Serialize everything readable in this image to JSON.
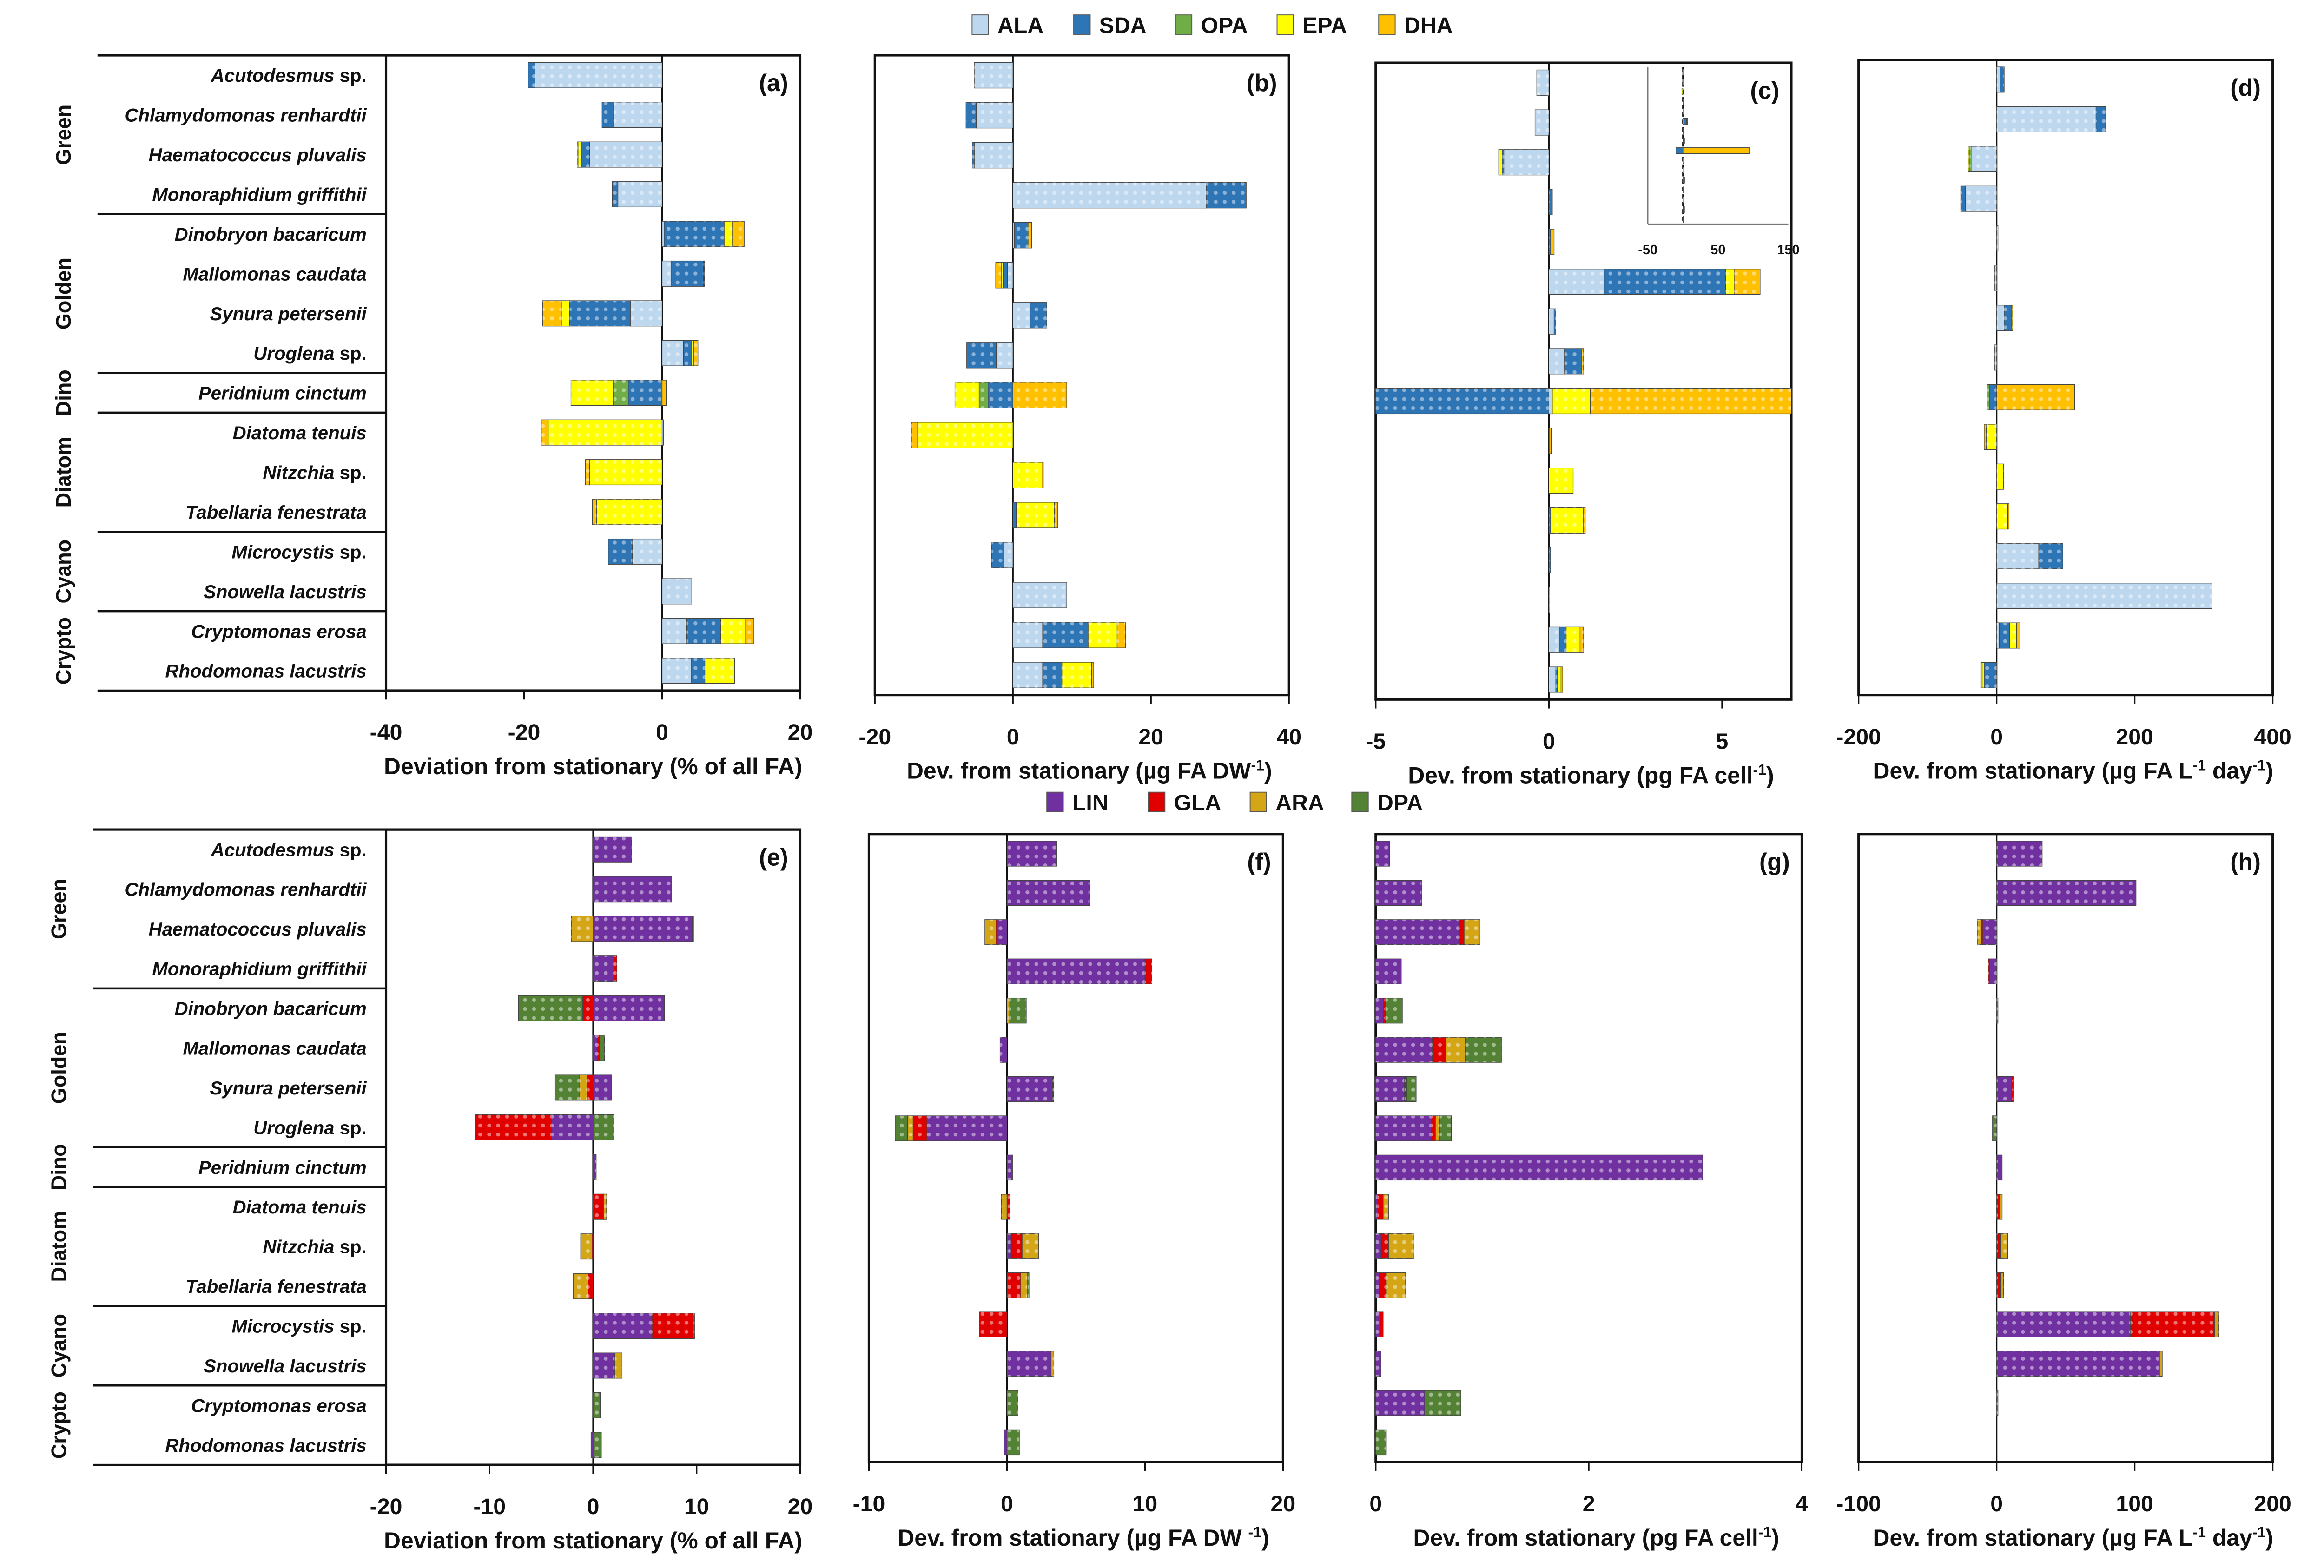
{
  "species": [
    "Acutodesmus sp.",
    "Chlamydomonas renhardtii",
    "Haematococcus pluvalis",
    "Monoraphidium griffithii",
    "Dinobryon bacaricum",
    "Mallomonas caudata",
    "Synura petersenii",
    "Uroglena sp.",
    "Peridnium cinctum",
    "Diatoma tenuis",
    "Nitzchia sp.",
    "Tabellaria fenestrata",
    "Microcystis sp.",
    "Snowella lacustris",
    "Cryptomonas erosa",
    "Rhodomonas lacustris"
  ],
  "groups": [
    {
      "name": "Green",
      "first": 0,
      "last": 3
    },
    {
      "name": "Golden",
      "first": 4,
      "last": 7
    },
    {
      "name": "Dino",
      "first": 8,
      "last": 8
    },
    {
      "name": "Diatom",
      "first": 9,
      "last": 11
    },
    {
      "name": "Cyano",
      "first": 12,
      "last": 13
    },
    {
      "name": "Crypto",
      "first": 14,
      "last": 15
    }
  ],
  "legends": {
    "top": [
      {
        "name": "ALA",
        "color": "#bdd7ee"
      },
      {
        "name": "SDA",
        "color": "#2e75b6"
      },
      {
        "name": "OPA",
        "color": "#70ad47"
      },
      {
        "name": "EPA",
        "color": "#ffff00"
      },
      {
        "name": "DHA",
        "color": "#ffc000"
      }
    ],
    "bottom": [
      {
        "name": "LIN",
        "color": "#7030a0"
      },
      {
        "name": "GLA",
        "color": "#e00000"
      },
      {
        "name": "ARA",
        "color": "#d4a514"
      },
      {
        "name": "DPA",
        "color": "#548235"
      }
    ]
  },
  "chart_data": [
    {
      "type": "bar",
      "panel": "(a)",
      "legend": "top",
      "xlim": [
        -40,
        20
      ],
      "ticks": [
        -40,
        -20,
        0,
        20
      ],
      "xlabel": [
        {
          "t": "Deviation from stationary (% of all FA)"
        }
      ],
      "series": [
        {
          "name": "ALA",
          "values": [
            -18.4,
            -7.1,
            -10.5,
            -6.4,
            0.3,
            1.3,
            -4.6,
            3.1,
            0,
            0.2,
            0,
            0,
            -4.3,
            4.3,
            3.5,
            4.2
          ]
        },
        {
          "name": "SDA",
          "values": [
            -1.0,
            -1.6,
            -1.2,
            -0.8,
            8.7,
            4.7,
            -8.8,
            1.2,
            -4.9,
            0,
            0,
            0,
            -3.5,
            0,
            5.0,
            2.0
          ]
        },
        {
          "name": "OPA",
          "values": [
            0,
            0,
            0,
            0,
            0,
            0.1,
            0,
            0,
            -2.2,
            0,
            0,
            0,
            0,
            0,
            0,
            0
          ]
        },
        {
          "name": "EPA",
          "values": [
            0,
            0,
            -0.5,
            0,
            1.2,
            0,
            -1.1,
            0.3,
            -6.1,
            -16.5,
            -10.5,
            -9.5,
            0,
            0,
            3.5,
            4.3
          ]
        },
        {
          "name": "DHA",
          "values": [
            0,
            0,
            -0.1,
            0,
            1.7,
            0,
            -2.8,
            0.6,
            0.6,
            -1.0,
            -0.6,
            -0.6,
            0,
            0,
            1.3,
            0
          ]
        }
      ]
    },
    {
      "type": "bar",
      "panel": "(b)",
      "legend": "top",
      "xlim": [
        -20,
        40
      ],
      "ticks": [
        -20,
        0,
        20,
        40
      ],
      "xlabel": [
        {
          "t": "Dev. from stationary (µg FA DW"
        },
        {
          "t": "-1",
          "sup": true
        },
        {
          "t": ")"
        }
      ],
      "series": [
        {
          "name": "ALA",
          "values": [
            -5.6,
            -5.3,
            -5.6,
            28,
            0.2,
            -0.8,
            2.5,
            -2.4,
            0,
            0,
            0,
            0,
            -1.3,
            7.8,
            4.3,
            4.3
          ]
        },
        {
          "name": "SDA",
          "values": [
            0,
            -1.5,
            -0.3,
            5.8,
            2.0,
            -0.6,
            2.4,
            -4.3,
            -3.6,
            0,
            0,
            0.5,
            -1.8,
            0,
            6.6,
            2.8
          ]
        },
        {
          "name": "OPA",
          "values": [
            0,
            0,
            0,
            0,
            0,
            0,
            0,
            0,
            -1.3,
            0,
            0,
            0,
            0,
            0,
            0,
            0
          ]
        },
        {
          "name": "EPA",
          "values": [
            0,
            0,
            0,
            0,
            0,
            -0.3,
            0,
            0,
            -3.5,
            -13.9,
            4.2,
            5.5,
            0,
            0,
            4.2,
            4.3
          ]
        },
        {
          "name": "DHA",
          "values": [
            0,
            0,
            0,
            0,
            0.5,
            -0.8,
            0,
            0,
            7.8,
            -0.8,
            0.2,
            0.5,
            0,
            0,
            1.2,
            0.3
          ]
        }
      ]
    },
    {
      "type": "bar",
      "panel": "(c)",
      "legend": "top",
      "xlim": [
        -5,
        7
      ],
      "ticks": [
        -5,
        0,
        5
      ],
      "xlabel": [
        {
          "t": "Dev. from stationary (pg FA cell"
        },
        {
          "t": "-1",
          "sup": true
        },
        {
          "t": ")"
        }
      ],
      "inset": {
        "xlim": [
          -50,
          150
        ],
        "ticks": [
          -50,
          50,
          150
        ]
      },
      "series": [
        {
          "name": "ALA",
          "values": [
            -0.35,
            -0.4,
            -1.3,
            0,
            0,
            1.6,
            0.15,
            0.45,
            0.1,
            0,
            0,
            0,
            0,
            0.02,
            0.3,
            0.2
          ]
        },
        {
          "name": "SDA",
          "values": [
            0,
            0,
            -0.05,
            0.1,
            0.05,
            3.5,
            0.05,
            0.5,
            -10,
            0,
            0,
            0.05,
            0.05,
            0,
            0.2,
            0.05
          ]
        },
        {
          "name": "OPA",
          "values": [
            0,
            0,
            0,
            0,
            0,
            0,
            0,
            0,
            0,
            0,
            0,
            0,
            0,
            0,
            0,
            0
          ]
        },
        {
          "name": "EPA",
          "values": [
            0,
            0,
            -0.1,
            0,
            0,
            0.25,
            0,
            0,
            1.1,
            0.02,
            0.7,
            0.95,
            0,
            0,
            0.4,
            0.1
          ]
        },
        {
          "name": "DHA",
          "values": [
            0,
            0,
            0,
            0,
            0.1,
            0.75,
            0,
            0.05,
            93.5,
            0.05,
            0,
            0.05,
            0,
            0,
            0.1,
            0.05
          ]
        }
      ]
    },
    {
      "type": "bar",
      "panel": "(d)",
      "legend": "top",
      "xlim": [
        -200,
        400
      ],
      "ticks": [
        -200,
        0,
        200,
        400
      ],
      "xlabel": [
        {
          "t": "Dev. from stationary (µg FA L"
        },
        {
          "t": "-1",
          "sup": true
        },
        {
          "t": " day"
        },
        {
          "t": "-1",
          "sup": true
        },
        {
          "t": ")"
        }
      ],
      "series": [
        {
          "name": "ALA",
          "values": [
            5,
            144,
            -37,
            -45,
            0,
            -3,
            11,
            -3,
            0,
            0,
            0,
            0,
            61,
            312,
            4,
            0
          ]
        },
        {
          "name": "SDA",
          "values": [
            6,
            14,
            0,
            -7,
            0,
            0,
            11,
            0,
            -10,
            0,
            0,
            0,
            35,
            0,
            15,
            -18
          ]
        },
        {
          "name": "OPA",
          "values": [
            0,
            0,
            -3,
            0,
            0,
            0,
            0,
            0,
            -4,
            0,
            0,
            0,
            0,
            0,
            0,
            0
          ]
        },
        {
          "name": "EPA",
          "values": [
            0,
            0,
            -1,
            0,
            0,
            0,
            0,
            0,
            0,
            -15,
            10,
            16,
            0,
            0,
            10,
            -3
          ]
        },
        {
          "name": "DHA",
          "values": [
            0,
            0,
            0,
            0,
            2,
            0,
            1,
            0,
            113,
            -3,
            0,
            2,
            0,
            0,
            5,
            -2
          ]
        }
      ]
    },
    {
      "type": "bar",
      "panel": "(e)",
      "legend": "bottom",
      "xlim": [
        -20,
        20
      ],
      "ticks": [
        -20,
        -10,
        0,
        10,
        20
      ],
      "xlabel": [
        {
          "t": "Deviation from stationary (% of all FA)"
        }
      ],
      "series": [
        {
          "name": "LIN",
          "values": [
            3.7,
            7.6,
            9.6,
            2.0,
            6.9,
            0.4,
            1.8,
            -4.0,
            0.3,
            0.1,
            0,
            0,
            5.7,
            2.1,
            0,
            -0.2
          ]
        },
        {
          "name": "GLA",
          "values": [
            0,
            0,
            0.1,
            0.3,
            -1.0,
            0.2,
            -0.6,
            -7.4,
            0,
            0.9,
            -0.1,
            -0.5,
            4.0,
            0,
            0,
            0
          ]
        },
        {
          "name": "ARA",
          "values": [
            0,
            0,
            -2.1,
            0,
            0,
            0,
            -0.7,
            0,
            0,
            0.3,
            -1.1,
            -1.4,
            0.1,
            0.7,
            0,
            0
          ]
        },
        {
          "name": "DPA",
          "values": [
            0,
            0,
            0,
            0,
            -6.2,
            0.5,
            -2.4,
            2.0,
            0,
            0,
            0,
            0,
            0,
            0,
            0.7,
            0.8
          ]
        }
      ]
    },
    {
      "type": "bar",
      "panel": "(f)",
      "legend": "bottom",
      "xlim": [
        -10,
        20
      ],
      "ticks": [
        -10,
        0,
        10,
        20
      ],
      "xlabel": [
        {
          "t": "Dev. from stationary (µg FA DW "
        },
        {
          "t": "-1",
          "sup": true
        },
        {
          "t": ")"
        }
      ],
      "series": [
        {
          "name": "LIN",
          "values": [
            3.6,
            6.0,
            -0.7,
            10.0,
            0,
            -0.5,
            3.3,
            -5.8,
            0.4,
            0,
            0.3,
            0,
            0,
            3.2,
            0,
            -0.2
          ]
        },
        {
          "name": "GLA",
          "values": [
            0,
            0,
            -0.1,
            0.5,
            0,
            0,
            0.1,
            -1.0,
            0,
            0.2,
            0.8,
            1.0,
            -2.0,
            0,
            0,
            0
          ]
        },
        {
          "name": "ARA",
          "values": [
            0,
            0,
            -0.8,
            0,
            0.2,
            0,
            0,
            -0.4,
            0,
            -0.4,
            1.2,
            0.5,
            0,
            0.2,
            0,
            0
          ]
        },
        {
          "name": "DPA",
          "values": [
            0,
            0,
            0,
            0,
            1.2,
            0,
            0,
            -0.9,
            0,
            0,
            0,
            0.1,
            0,
            0,
            0.8,
            0.9
          ]
        }
      ]
    },
    {
      "type": "bar",
      "panel": "(g)",
      "legend": "bottom",
      "xlim": [
        0,
        4
      ],
      "ticks": [
        0,
        2,
        4
      ],
      "xlabel": [
        {
          "t": "Dev.  from stationary (pg FA cell"
        },
        {
          "t": "-1",
          "sup": true
        },
        {
          "t": ")"
        }
      ],
      "series": [
        {
          "name": "LIN",
          "values": [
            0.13,
            0.43,
            0.78,
            0.24,
            0.07,
            0.53,
            0.27,
            0.52,
            3.07,
            0.02,
            0.05,
            0.03,
            0.04,
            0.05,
            0.46,
            0
          ]
        },
        {
          "name": "GLA",
          "values": [
            0,
            0,
            0.05,
            0,
            0.02,
            0.13,
            0.02,
            0.04,
            0,
            0.05,
            0.07,
            0.07,
            0.03,
            0,
            0,
            0
          ]
        },
        {
          "name": "ARA",
          "values": [
            0,
            0,
            0.15,
            0,
            0,
            0.18,
            0,
            0.04,
            0,
            0.05,
            0.24,
            0.18,
            0,
            0,
            0,
            0
          ]
        },
        {
          "name": "DPA",
          "values": [
            0,
            0,
            0,
            0,
            0.16,
            0.34,
            0.09,
            0.11,
            0,
            0,
            0,
            0,
            0,
            0,
            0.34,
            0.1
          ]
        }
      ]
    },
    {
      "type": "bar",
      "panel": "(h)",
      "legend": "bottom",
      "xlim": [
        -100,
        200
      ],
      "ticks": [
        -100,
        0,
        100,
        200
      ],
      "xlabel": [
        {
          "t": "Dev. from stationary (µg FA L"
        },
        {
          "t": "-1",
          "sup": true
        },
        {
          "t": " day"
        },
        {
          "t": "-1",
          "sup": true
        },
        {
          "t": ")"
        }
      ],
      "series": [
        {
          "name": "LIN",
          "values": [
            33,
            101,
            -10,
            -5,
            0,
            0,
            11,
            0,
            4,
            0,
            0,
            0,
            97,
            118,
            0,
            0
          ]
        },
        {
          "name": "GLA",
          "values": [
            0,
            0,
            -1,
            -1,
            0,
            0,
            1,
            0,
            0,
            2,
            3,
            3,
            61,
            0,
            0,
            0
          ]
        },
        {
          "name": "ARA",
          "values": [
            0,
            0,
            -3,
            0,
            0,
            0,
            0,
            0,
            0,
            2,
            5,
            2,
            3,
            2,
            0,
            0
          ]
        },
        {
          "name": "DPA",
          "values": [
            0,
            0,
            0,
            0,
            1,
            0,
            0,
            -3,
            0,
            0,
            0,
            0,
            0,
            0,
            1,
            0
          ]
        }
      ]
    }
  ]
}
